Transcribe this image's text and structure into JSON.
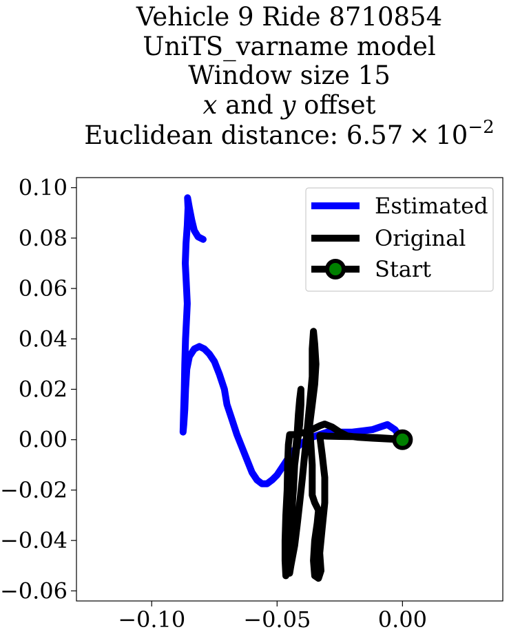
{
  "title": {
    "line1": "Vehicle 9 Ride 8710854",
    "line2": "UniTS_varname model",
    "line3": "Window size 15",
    "line4_var_x": "x",
    "line4_and": " and ",
    "line4_var_y": "y",
    "line4_rest": " offset",
    "line5_prefix": "Euclidean distance: 6.57",
    "line5_times": "×",
    "line5_base": "10",
    "line5_exp": "−2"
  },
  "chart_data": {
    "type": "line",
    "xlim": [
      -0.13,
      0.04
    ],
    "ylim": [
      -0.064,
      0.104
    ],
    "xticks": [
      -0.1,
      -0.05,
      0.0
    ],
    "xtick_labels": [
      "−0.10",
      "−0.05",
      "0.00"
    ],
    "yticks": [
      0.1,
      0.08,
      0.06,
      0.04,
      0.02,
      0.0,
      -0.02,
      -0.04,
      -0.06
    ],
    "ytick_labels": [
      "0.10",
      "0.08",
      "0.06",
      "0.04",
      "0.02",
      "0.00",
      "−0.02",
      "−0.04",
      "−0.06"
    ],
    "grid": false,
    "legend_position": "upper-right",
    "series": [
      {
        "name": "Estimated",
        "color": "#0000ff",
        "points": [
          [
            0.0,
            0.0
          ],
          [
            -0.003,
            0.004
          ],
          [
            -0.006,
            0.006
          ],
          [
            -0.009,
            0.005
          ],
          [
            -0.012,
            0.004
          ],
          [
            -0.016,
            0.0035
          ],
          [
            -0.02,
            0.003
          ],
          [
            -0.025,
            0.003
          ],
          [
            -0.03,
            0.003
          ],
          [
            -0.033,
            0.002
          ],
          [
            -0.036,
            0.001
          ],
          [
            -0.038,
            0.0
          ],
          [
            -0.041,
            -0.002
          ],
          [
            -0.044,
            -0.005
          ],
          [
            -0.046,
            -0.008
          ],
          [
            -0.048,
            -0.011
          ],
          [
            -0.05,
            -0.014
          ],
          [
            -0.052,
            -0.016
          ],
          [
            -0.054,
            -0.0175
          ],
          [
            -0.056,
            -0.0175
          ],
          [
            -0.058,
            -0.016
          ],
          [
            -0.06,
            -0.013
          ],
          [
            -0.062,
            -0.008
          ],
          [
            -0.064,
            -0.003
          ],
          [
            -0.066,
            0.002
          ],
          [
            -0.068,
            0.008
          ],
          [
            -0.07,
            0.014
          ],
          [
            -0.071,
            0.02
          ],
          [
            -0.073,
            0.026
          ],
          [
            -0.075,
            0.031
          ],
          [
            -0.077,
            0.034
          ],
          [
            -0.079,
            0.036
          ],
          [
            -0.081,
            0.037
          ],
          [
            -0.083,
            0.036
          ],
          [
            -0.085,
            0.033
          ],
          [
            -0.086,
            0.028
          ],
          [
            -0.0865,
            0.02
          ],
          [
            -0.0868,
            0.012
          ],
          [
            -0.0872,
            0.006
          ],
          [
            -0.0875,
            0.003
          ],
          [
            -0.0873,
            0.01
          ],
          [
            -0.087,
            0.02
          ],
          [
            -0.0868,
            0.03
          ],
          [
            -0.0865,
            0.04
          ],
          [
            -0.086,
            0.05
          ],
          [
            -0.0858,
            0.054
          ],
          [
            -0.0862,
            0.062
          ],
          [
            -0.0866,
            0.07
          ],
          [
            -0.0863,
            0.078
          ],
          [
            -0.0858,
            0.085
          ],
          [
            -0.0855,
            0.092
          ],
          [
            -0.0857,
            0.096
          ],
          [
            -0.085,
            0.092
          ],
          [
            -0.084,
            0.087
          ],
          [
            -0.083,
            0.083
          ],
          [
            -0.0815,
            0.0805
          ],
          [
            -0.0795,
            0.0795
          ]
        ]
      },
      {
        "name": "Original",
        "color": "#000000",
        "points": [
          [
            0.0,
            0.0
          ],
          [
            -0.005,
            0.0005
          ],
          [
            -0.01,
            0.0008
          ],
          [
            -0.015,
            0.001
          ],
          [
            -0.02,
            0.0012
          ],
          [
            -0.025,
            0.0013
          ],
          [
            -0.03,
            0.0014
          ],
          [
            -0.033,
            0.0016
          ],
          [
            -0.032,
            -0.006
          ],
          [
            -0.031,
            -0.015
          ],
          [
            -0.031,
            -0.025
          ],
          [
            -0.032,
            -0.035
          ],
          [
            -0.033,
            -0.045
          ],
          [
            -0.0325,
            -0.052
          ],
          [
            -0.0335,
            -0.055
          ],
          [
            -0.035,
            -0.054
          ],
          [
            -0.0355,
            -0.048
          ],
          [
            -0.035,
            -0.04
          ],
          [
            -0.034,
            -0.033
          ],
          [
            -0.0335,
            -0.028
          ],
          [
            -0.035,
            -0.025
          ],
          [
            -0.036,
            -0.022
          ],
          [
            -0.036,
            -0.016
          ],
          [
            -0.036,
            -0.01
          ],
          [
            -0.0365,
            -0.002
          ],
          [
            -0.037,
            0.006
          ],
          [
            -0.036,
            0.014
          ],
          [
            -0.035,
            0.022
          ],
          [
            -0.0345,
            0.03
          ],
          [
            -0.035,
            0.038
          ],
          [
            -0.0355,
            0.043
          ],
          [
            -0.036,
            0.036
          ],
          [
            -0.036,
            0.025
          ],
          [
            -0.037,
            0.014
          ],
          [
            -0.038,
            0.004
          ],
          [
            -0.039,
            -0.006
          ],
          [
            -0.04,
            -0.016
          ],
          [
            -0.041,
            -0.025
          ],
          [
            -0.042,
            -0.034
          ],
          [
            -0.043,
            -0.042
          ],
          [
            -0.0445,
            -0.05
          ],
          [
            -0.045,
            -0.053
          ],
          [
            -0.045,
            -0.046
          ],
          [
            -0.0445,
            -0.037
          ],
          [
            -0.044,
            -0.028
          ],
          [
            -0.0435,
            -0.018
          ],
          [
            -0.043,
            -0.008
          ],
          [
            -0.042,
            0.002
          ],
          [
            -0.0415,
            0.01
          ],
          [
            -0.041,
            0.016
          ],
          [
            -0.0405,
            0.02
          ],
          [
            -0.0405,
            0.014
          ],
          [
            -0.041,
            0.006
          ],
          [
            -0.042,
            -0.002
          ],
          [
            -0.043,
            -0.01
          ],
          [
            -0.0435,
            -0.02
          ],
          [
            -0.0445,
            -0.03
          ],
          [
            -0.045,
            -0.04
          ],
          [
            -0.046,
            -0.048
          ],
          [
            -0.0465,
            -0.054
          ],
          [
            -0.0468,
            -0.048
          ],
          [
            -0.0468,
            -0.04
          ],
          [
            -0.0465,
            -0.03
          ],
          [
            -0.046,
            -0.02
          ],
          [
            -0.0458,
            -0.01
          ],
          [
            -0.0455,
            -0.002
          ],
          [
            -0.045,
            0.002
          ],
          [
            -0.043,
            0.002
          ],
          [
            -0.041,
            0.0025
          ],
          [
            -0.038,
            0.003
          ],
          [
            -0.035,
            0.0045
          ],
          [
            -0.033,
            0.0055
          ],
          [
            -0.031,
            0.0062
          ],
          [
            -0.028,
            0.005
          ],
          [
            -0.025,
            0.003
          ],
          [
            -0.022,
            0.0015
          ],
          [
            -0.018,
            0.001
          ],
          [
            -0.012,
            0.0006
          ],
          [
            -0.006,
            0.0003
          ],
          [
            0.0,
            0.0
          ]
        ]
      }
    ],
    "start_point": {
      "x": 0.0,
      "y": 0.0,
      "marker_face": "#008000",
      "marker_edge": "#000000"
    }
  },
  "legend": {
    "entries": [
      {
        "label": "Estimated",
        "color": "#0000ff",
        "marker": false
      },
      {
        "label": "Original",
        "color": "#000000",
        "marker": false
      },
      {
        "label": "Start",
        "color": "#000000",
        "marker": true
      }
    ]
  }
}
